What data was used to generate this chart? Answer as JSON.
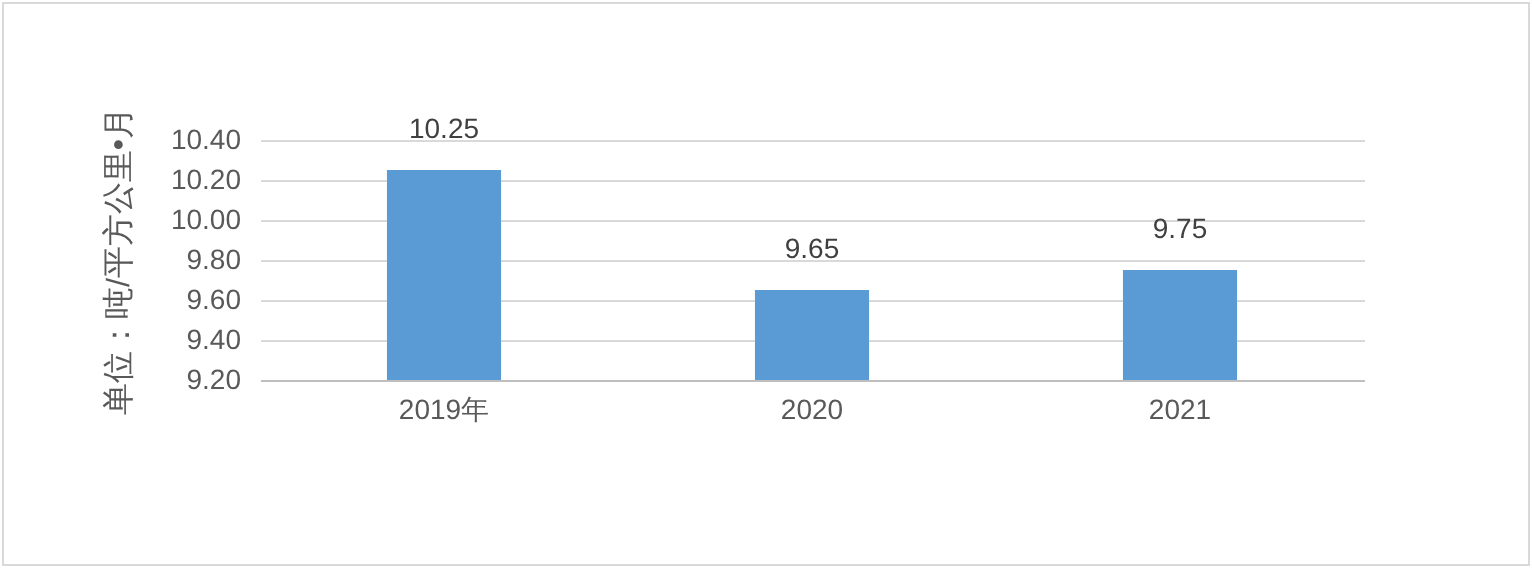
{
  "chart_data": {
    "type": "bar",
    "ylabel": "单位：吨/平方公里•月",
    "categories": [
      "2019年",
      "2020",
      "2021"
    ],
    "values": [
      10.25,
      9.65,
      9.75
    ],
    "color": "#5b9bd5",
    "ylim": [
      9.2,
      10.4
    ],
    "yticks": [
      {
        "value": 9.2,
        "label": "9.20"
      },
      {
        "value": 9.4,
        "label": "9.40"
      },
      {
        "value": 9.6,
        "label": "9.60"
      },
      {
        "value": 9.8,
        "label": "9.80"
      },
      {
        "value": 10.0,
        "label": "10.00"
      },
      {
        "value": 10.2,
        "label": "10.20"
      },
      {
        "value": 10.4,
        "label": "10.40"
      }
    ],
    "grid": "y",
    "data_labels": true
  }
}
